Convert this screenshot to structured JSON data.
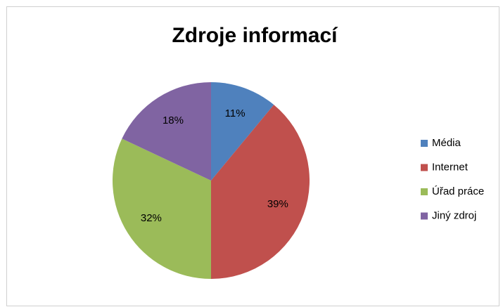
{
  "chart_data": {
    "type": "pie",
    "title": "Zdroje informací",
    "categories": [
      "Média",
      "Internet",
      "Úřad práce",
      "Jiný zdroj"
    ],
    "values": [
      11,
      39,
      32,
      18
    ],
    "value_labels": [
      "11%",
      "39%",
      "32%",
      "18%"
    ],
    "colors": [
      "#4f81bd",
      "#c0504d",
      "#9bbb59",
      "#8064a2"
    ],
    "legend": "right"
  }
}
